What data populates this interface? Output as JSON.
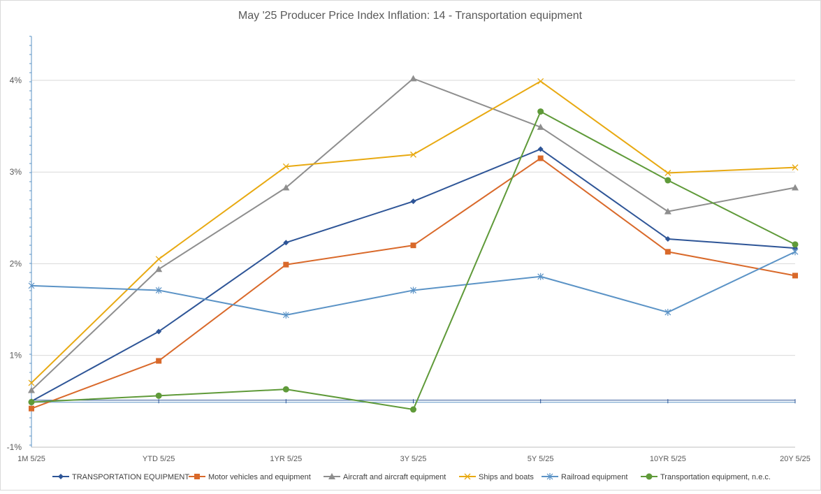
{
  "chart_data": {
    "type": "line",
    "title": "May '25 Producer Price Index Inflation: 14 - Transportation equipment",
    "xlabel": "",
    "ylabel": "",
    "categories": [
      "1M 5/25",
      "YTD 5/25",
      "1YR 5/25",
      "3Y 5/25",
      "5Y 5/25",
      "10YR  5/25",
      "20Y 5/25"
    ],
    "ylim": [
      -1,
      4.5
    ],
    "y_ticks": [
      {
        "value": -1,
        "label": "-1%"
      },
      {
        "value": 1,
        "label": "1%"
      },
      {
        "value": 2,
        "label": "2%"
      },
      {
        "value": 3,
        "label": "3%"
      },
      {
        "value": 4,
        "label": "4%"
      }
    ],
    "zero_line_value": 0.5,
    "grid": true,
    "legend_position": "bottom",
    "series": [
      {
        "name": "TRANSPORTATION EQUIPMENT",
        "color": "#2E5597",
        "marker": "diamond",
        "values": [
          0.5,
          1.26,
          2.23,
          2.68,
          3.25,
          2.27,
          2.17
        ]
      },
      {
        "name": "Motor vehicles and equipment",
        "color": "#D9692A",
        "marker": "square",
        "values": [
          0.42,
          0.94,
          1.99,
          2.2,
          3.15,
          2.13,
          1.87
        ]
      },
      {
        "name": "Aircraft and aircraft equipment",
        "color": "#8E8E8E",
        "marker": "triangle",
        "values": [
          0.62,
          1.94,
          2.83,
          4.02,
          3.49,
          2.57,
          2.83
        ]
      },
      {
        "name": "Ships and boats",
        "color": "#E8A911",
        "marker": "x",
        "values": [
          0.7,
          2.05,
          3.06,
          3.19,
          3.99,
          2.99,
          3.05
        ]
      },
      {
        "name": "Railroad equipment",
        "color": "#5B93C6",
        "marker": "asterisk",
        "values": [
          1.76,
          1.71,
          1.44,
          1.71,
          1.86,
          1.47,
          2.13
        ]
      },
      {
        "name": "Transportation equipment, n.e.c.",
        "color": "#5F9A39",
        "marker": "circle",
        "values": [
          0.49,
          0.56,
          0.63,
          0.41,
          3.66,
          2.91,
          2.21
        ]
      }
    ]
  }
}
